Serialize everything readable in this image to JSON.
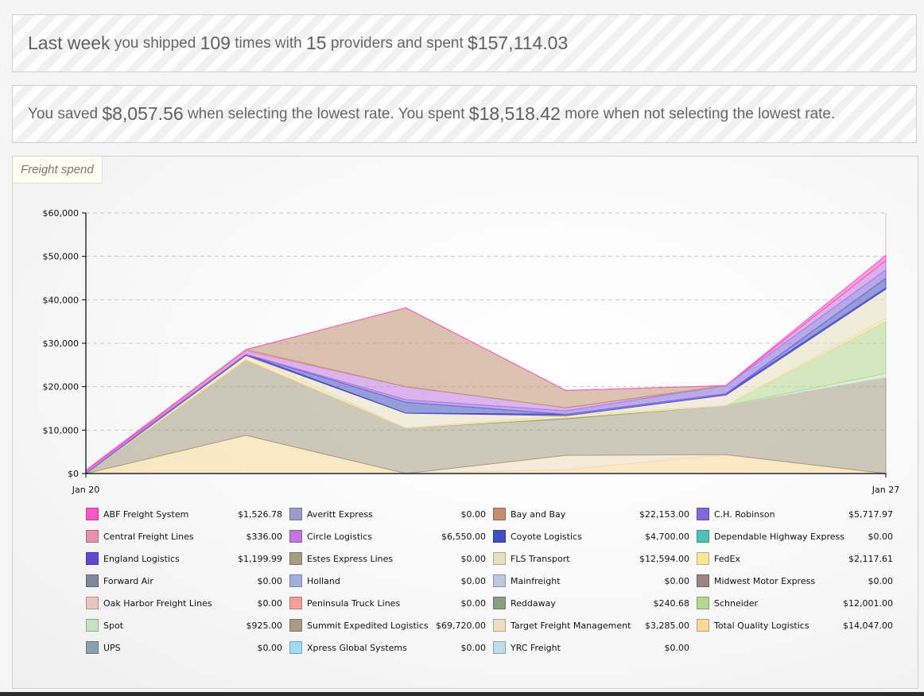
{
  "summary": {
    "line1": {
      "lead": "Last week",
      "t1": "you shipped",
      "shipments": "109",
      "t2": "times with",
      "providers": "15",
      "t3": "providers and spent",
      "spent": "$157,114.03"
    },
    "line2": {
      "t1": "You saved",
      "saved": "$8,057.56",
      "t2": "when selecting the lowest rate. You spent",
      "extra": "$18,518.42",
      "t3": "more when not selecting the lowest rate."
    }
  },
  "panel": {
    "title": "Freight spend"
  },
  "chart_data": {
    "type": "area",
    "stacked": true,
    "title": "Freight spend",
    "xlabel": "",
    "ylabel": "",
    "x_count": 6,
    "x_tick_labels": [
      {
        "index": 0,
        "label": "Jan 20"
      },
      {
        "index": 5,
        "label": "Jan 27"
      }
    ],
    "ylim": [
      0,
      60000
    ],
    "y_ticks": [
      0,
      10000,
      20000,
      30000,
      40000,
      50000,
      60000
    ],
    "y_tick_labels": [
      "$0",
      "$10,000",
      "$20,000",
      "$30,000",
      "$40,000",
      "$50,000",
      "$60,000"
    ],
    "grid": "horizontal-dashed",
    "legend_position": "bottom",
    "stack_order": [
      "Total Quality Logistics",
      "Target Freight Management",
      "Summit Expedited Logistics",
      "Spot",
      "Schneider",
      "Reddaway",
      "FedEx",
      "FLS Transport",
      "England Logistics",
      "Coyote Logistics",
      "C.H. Robinson",
      "Circle Logistics",
      "Central Freight Lines",
      "Bay and Bay",
      "ABF Freight System"
    ],
    "series": [
      {
        "name": "ABF Freight System",
        "color": "#ff55c8",
        "total": "$1,526.78",
        "values": [
          300,
          0,
          0,
          0,
          0,
          1226.78
        ]
      },
      {
        "name": "Averitt Express",
        "color": "#9b9bc8",
        "total": "$0.00",
        "values": [
          0,
          0,
          0,
          0,
          0,
          0
        ]
      },
      {
        "name": "Bay and Bay",
        "color": "#c09070",
        "total": "$22,153.00",
        "values": [
          0,
          0,
          18150,
          4000,
          3,
          0
        ]
      },
      {
        "name": "C.H. Robinson",
        "color": "#8068d8",
        "total": "$5,717.97",
        "values": [
          500,
          0,
          600,
          800,
          1900,
          1917.97
        ]
      },
      {
        "name": "Central Freight Lines",
        "color": "#e890b0",
        "total": "$336.00",
        "values": [
          0,
          336,
          0,
          0,
          0,
          0
        ]
      },
      {
        "name": "Circle Logistics",
        "color": "#c078e0",
        "total": "$6,550.00",
        "values": [
          0,
          700,
          3000,
          700,
          0,
          2150
        ]
      },
      {
        "name": "Coyote Logistics",
        "color": "#4050c0",
        "total": "$4,700.00",
        "values": [
          0,
          0,
          2500,
          0,
          0,
          2200
        ]
      },
      {
        "name": "Dependable Highway Express",
        "color": "#50c0b8",
        "total": "$0.00",
        "values": [
          0,
          0,
          0,
          0,
          0,
          0
        ]
      },
      {
        "name": "England Logistics",
        "color": "#6048d0",
        "total": "$1,199.99",
        "values": [
          0,
          300,
          0,
          300,
          300,
          299.99
        ]
      },
      {
        "name": "Estes Express Lines",
        "color": "#a89c84",
        "total": "$0.00",
        "values": [
          0,
          0,
          0,
          0,
          0,
          0
        ]
      },
      {
        "name": "FLS Transport",
        "color": "#e8dfc0",
        "total": "$12,594.00",
        "values": [
          0,
          0,
          3400,
          0,
          2400,
          6794
        ]
      },
      {
        "name": "FedEx",
        "color": "#fce49c",
        "total": "$2,117.61",
        "values": [
          0,
          1000,
          0,
          500,
          0,
          617.61
        ]
      },
      {
        "name": "Forward Air",
        "color": "#8088a0",
        "total": "$0.00",
        "values": [
          0,
          0,
          0,
          0,
          0,
          0
        ]
      },
      {
        "name": "Holland",
        "color": "#a0b0dc",
        "total": "$0.00",
        "values": [
          0,
          0,
          0,
          0,
          0,
          0
        ]
      },
      {
        "name": "Mainfreight",
        "color": "#c0c8e0",
        "total": "$0.00",
        "values": [
          0,
          0,
          0,
          0,
          0,
          0
        ]
      },
      {
        "name": "Midwest Motor Express",
        "color": "#a08480",
        "total": "$0.00",
        "values": [
          0,
          0,
          0,
          0,
          0,
          0
        ]
      },
      {
        "name": "Oak Harbor Freight Lines",
        "color": "#ecc4c0",
        "total": "$0.00",
        "values": [
          0,
          0,
          0,
          0,
          0,
          0
        ]
      },
      {
        "name": "Peninsula Truck Lines",
        "color": "#f4a098",
        "total": "$0.00",
        "values": [
          0,
          0,
          0,
          0,
          0,
          0
        ]
      },
      {
        "name": "Reddaway",
        "color": "#88a080",
        "total": "$240.68",
        "values": [
          0,
          0,
          0,
          240.68,
          0,
          0
        ]
      },
      {
        "name": "Schneider",
        "color": "#b4d890",
        "total": "$12,001.00",
        "values": [
          0,
          0,
          0,
          0,
          0,
          12001
        ]
      },
      {
        "name": "Spot",
        "color": "#c4e4c4",
        "total": "$925.00",
        "values": [
          0,
          0,
          0,
          0,
          0,
          925
        ]
      },
      {
        "name": "Summit Expedited Logistics",
        "color": "#a89c84",
        "total": "$69,720.00",
        "values": [
          0,
          17400,
          10500,
          8400,
          11300,
          22120
        ]
      },
      {
        "name": "Target Freight Management",
        "color": "#f0dcc0",
        "total": "$3,285.00",
        "values": [
          0,
          0,
          0,
          3285,
          0,
          0
        ]
      },
      {
        "name": "Total Quality Logistics",
        "color": "#fcd898",
        "total": "$14,047.00",
        "values": [
          0,
          8800,
          0,
          900,
          4347,
          0
        ]
      },
      {
        "name": "UPS",
        "color": "#88a0b0",
        "total": "$0.00",
        "values": [
          0,
          0,
          0,
          0,
          0,
          0
        ]
      },
      {
        "name": "Xpress Global Systems",
        "color": "#a0dcf4",
        "total": "$0.00",
        "values": [
          0,
          0,
          0,
          0,
          0,
          0
        ]
      },
      {
        "name": "YRC Freight",
        "color": "#c0dce8",
        "total": "$0.00",
        "values": [
          0,
          0,
          0,
          0,
          0,
          0
        ]
      }
    ]
  }
}
